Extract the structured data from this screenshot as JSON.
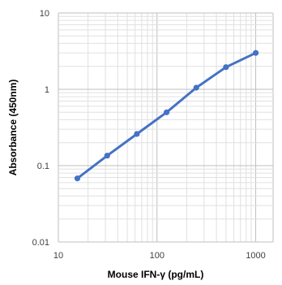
{
  "chart_data": {
    "type": "line",
    "title": "",
    "xlabel": "Mouse IFN-γ (pg/mL)",
    "ylabel": "Absorbance (450nm)",
    "xscale": "log",
    "yscale": "log",
    "xlim": [
      10,
      1500
    ],
    "ylim": [
      0.01,
      10
    ],
    "x_ticks": [
      "10",
      "100",
      "1000"
    ],
    "y_ticks": [
      "0.01",
      "0.1",
      "1",
      "10"
    ],
    "grid": true,
    "legend": "none",
    "series": [
      {
        "x": [
          15.6,
          31.25,
          62.5,
          125,
          250,
          500,
          1000
        ],
        "y": [
          0.068,
          0.135,
          0.26,
          0.5,
          1.05,
          1.95,
          3.0
        ],
        "color": "#4472C4"
      }
    ]
  }
}
